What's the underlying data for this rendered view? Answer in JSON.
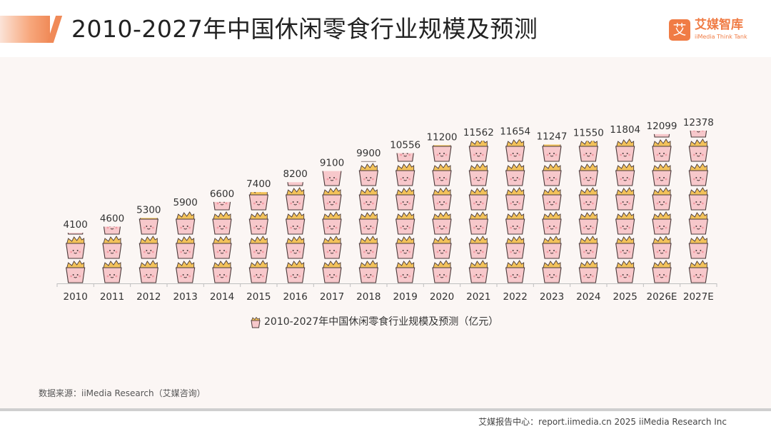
{
  "header": {
    "title": "2010-2027年中国休闲零食行业规模及预测"
  },
  "logo": {
    "mark": "艾",
    "name_cn": "艾媒智库",
    "name_en": "iiMedia Think Tank",
    "color": "#f07c45"
  },
  "chart_data": {
    "type": "bar",
    "categories": [
      "2010",
      "2011",
      "2012",
      "2013",
      "2014",
      "2015",
      "2016",
      "2017",
      "2018",
      "2019",
      "2020",
      "2021",
      "2022",
      "2023",
      "2024",
      "2025",
      "2026E",
      "2027E"
    ],
    "series": [
      {
        "name": "2010-2027年中国休闲零食行业规模及预测（亿元）",
        "values": [
          4100,
          4600,
          5300,
          5900,
          6600,
          7400,
          8200,
          9100,
          9900,
          10556,
          11200,
          11562,
          11654,
          11247,
          11550,
          11804,
          12099,
          12378
        ]
      }
    ],
    "title": "",
    "xlabel": "",
    "ylabel": "",
    "ylim": [
      0,
      12500
    ],
    "grid": false,
    "legend": "bottom",
    "bar_style": "stacked snack-bag pictogram",
    "colors": {
      "bag": "#f7c8cb",
      "bag_outline": "#4a3a3a",
      "chips": "#f3c25a",
      "axis": "#bfbfbf"
    }
  },
  "source": {
    "text": "数据来源：iiMedia Research（艾媒咨询）"
  },
  "footer": {
    "text": "艾媒报告中心：report.iimedia.cn  2025 iiMedia Research Inc"
  }
}
